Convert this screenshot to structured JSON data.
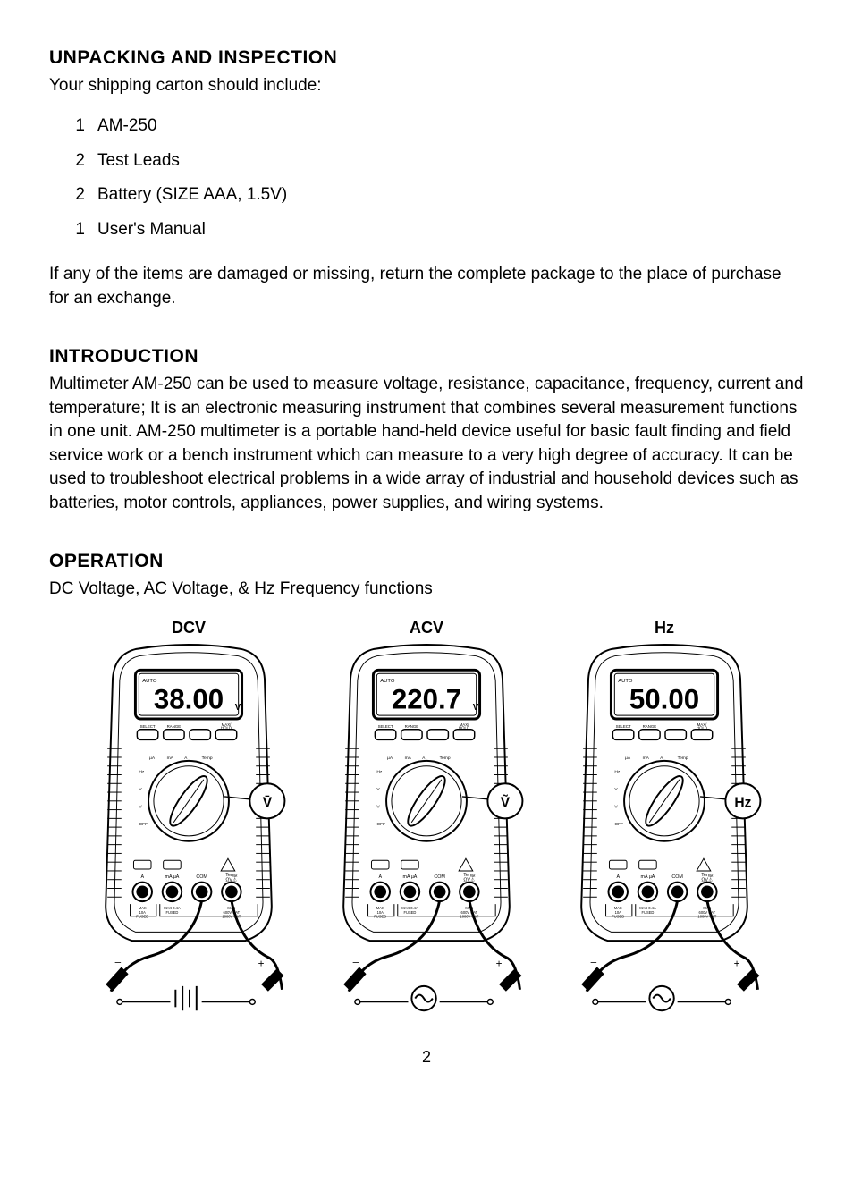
{
  "unpacking": {
    "heading": "UNPACKING AND INSPECTION",
    "intro": "Your shipping carton should include:",
    "items": [
      {
        "qty": "1",
        "name": "AM-250"
      },
      {
        "qty": "2",
        "name": "Test Leads"
      },
      {
        "qty": "2",
        "name": "Battery (SIZE AAA, 1.5V)"
      },
      {
        "qty": "1",
        "name": "User's Manual"
      }
    ],
    "note": "If any of the items are damaged or missing, return the complete package to the place of purchase for an exchange."
  },
  "introduction": {
    "heading": "INTRODUCTION",
    "body": "Multimeter AM-250 can be used to measure voltage, resistance, capacitance, frequency, current and temperature; It is an electronic measuring instrument that combines several measurement functions in one unit.  AM-250 multimeter is a portable hand-held device useful for basic fault finding and field service work or a bench instrument which can measure to a very high degree of accuracy. It can be used to troubleshoot electrical problems in a wide array of industrial and household devices such as batteries, motor controls, appliances, power supplies, and wiring systems."
  },
  "operation": {
    "heading": "OPERATION",
    "subtitle": "DC Voltage, AC Voltage, & Hz Frequency functions",
    "figures": [
      {
        "label": "DCV",
        "display": "38.00",
        "unit": "V",
        "dial_label": "V̄",
        "source": "dc"
      },
      {
        "label": "ACV",
        "display": "220.7",
        "unit": "V",
        "dial_label": "Ṽ",
        "source": "ac"
      },
      {
        "label": "Hz",
        "display": "50.00",
        "unit": "",
        "dial_label": "Hz",
        "source": "ac"
      }
    ]
  },
  "page_number": "2",
  "style": {
    "text_color": "#000000",
    "background_color": "#ffffff",
    "heading_fontsize_pt": 16,
    "body_fontsize_pt": 14,
    "font_family": "Helvetica",
    "meter_stroke": "#000000",
    "meter_fill": "#ffffff",
    "figure_label_weight": 700
  }
}
